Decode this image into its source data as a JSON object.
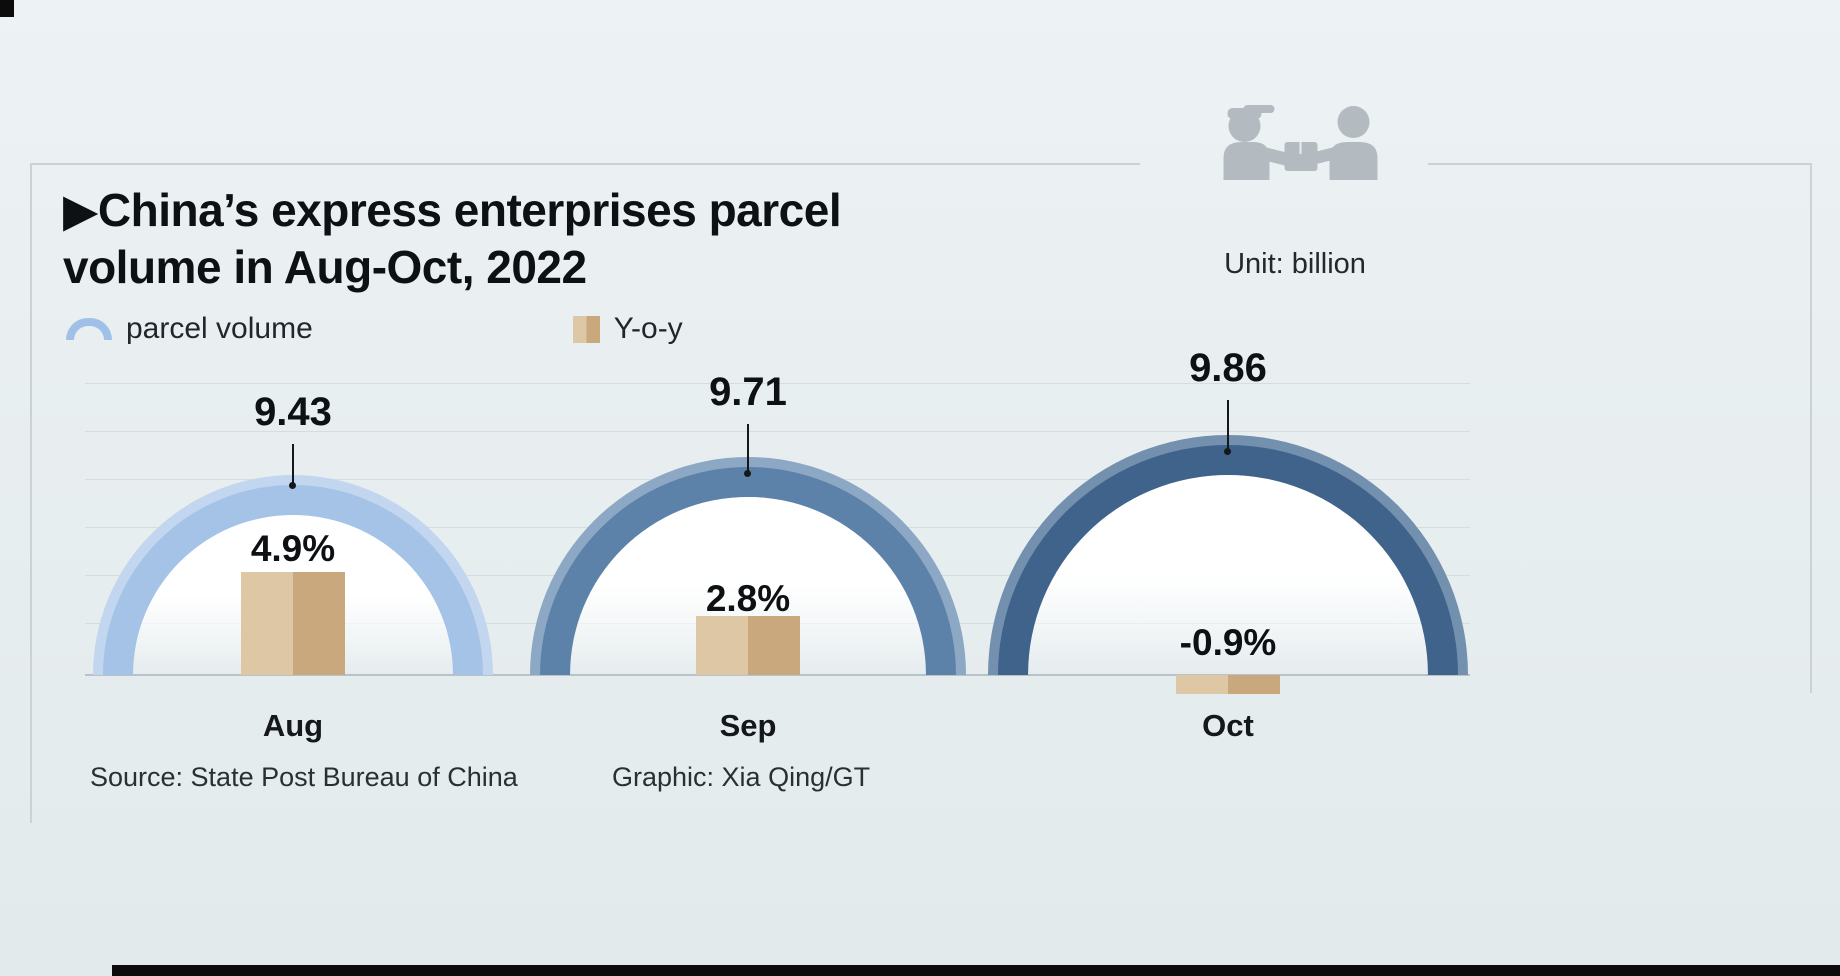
{
  "title": {
    "line1": "▶China’s express enterprises parcel",
    "line2": "volume in Aug-Oct, 2022"
  },
  "unit_label": "Unit: billion",
  "legend": {
    "items": [
      {
        "label": "parcel volume",
        "swatch": "blue-arc"
      },
      {
        "label": "Y-o-y",
        "swatch": "tan-bars"
      }
    ]
  },
  "chart_data": {
    "type": "bar",
    "title": "China’s express enterprises parcel volume in Aug-Oct, 2022",
    "unit": "billion",
    "categories": [
      "Aug",
      "Sep",
      "Oct"
    ],
    "series": [
      {
        "name": "parcel volume",
        "unit": "billion",
        "values": [
          9.43,
          9.71,
          9.86
        ]
      },
      {
        "name": "Y-o-y",
        "unit": "%",
        "values": [
          4.9,
          2.8,
          -0.9
        ]
      }
    ],
    "value_labels": [
      "9.43",
      "9.71",
      "9.86"
    ],
    "yoy_labels": [
      "4.9%",
      "2.8%",
      "-0.9%"
    ],
    "legend_position": "top-left",
    "grid": true
  },
  "footer": {
    "source": "Source: State Post Bureau of China",
    "credit": "Graphic: Xia Qing/GT"
  },
  "colors": {
    "bg-top": "#edf2f4",
    "bg-bottom": "#e2eaec",
    "arc-aug-rim": "#c2d6ef",
    "arc-aug-main": "#a4c3e7",
    "arc-sep-rim": "#8ca8c4",
    "arc-sep-main": "#5d82a9",
    "arc-oct-rim": "#7390ae",
    "arc-oct-main": "#40638b",
    "bar-light": "#ddc7a5",
    "bar-dark": "#c8a87c",
    "grid": "#d4dde1",
    "baseline": "#b6c3c9",
    "frame": "#c9d2d7",
    "text": "#0e1114",
    "icon": "#b4bbc0"
  }
}
